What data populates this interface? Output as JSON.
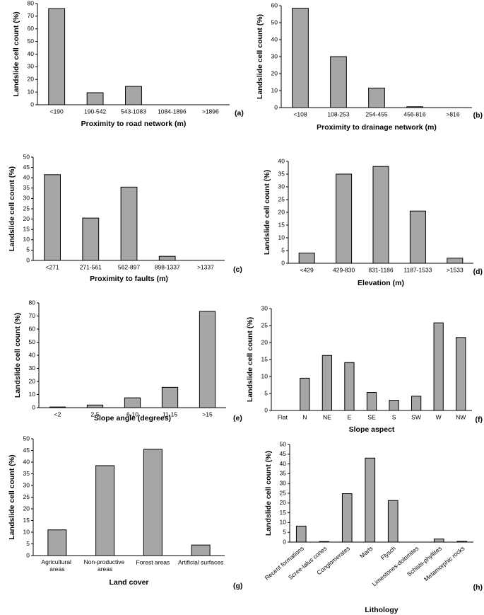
{
  "chart_data": [
    {
      "type": "bar",
      "ylabel": "Landslide cell count (%)",
      "xlabel": "Proximity to road network (m)",
      "panel": "(a)",
      "categories": [
        "<190",
        "190-542",
        "543-1083",
        "1084-1896",
        ">1896"
      ],
      "values": [
        76,
        9.5,
        14.5,
        0,
        0
      ],
      "color": "#a6a6a6",
      "ylim": [
        0,
        80
      ],
      "yticks": [
        0,
        10,
        20,
        30,
        40,
        50,
        60,
        70,
        80
      ]
    },
    {
      "type": "bar",
      "ylabel": "Landslide cell count (%)",
      "xlabel": "Proximity to drainage network (m)",
      "panel": "(b)",
      "categories": [
        "<108",
        "108-253",
        "254-455",
        "456-816",
        ">816"
      ],
      "values": [
        58.5,
        30,
        11.5,
        0.5,
        0
      ],
      "color": "#a6a6a6",
      "ylim": [
        0,
        60
      ],
      "yticks": [
        0,
        10,
        20,
        30,
        40,
        50,
        60
      ]
    },
    {
      "type": "bar",
      "ylabel": "Landslide cell count (%)",
      "xlabel": "Proximity to faults (m)",
      "panel": "(c)",
      "categories": [
        "<271",
        "271-561",
        "562-897",
        "898-1337",
        ">1337"
      ],
      "values": [
        41.5,
        20.5,
        35.5,
        2,
        0
      ],
      "color": "#a6a6a6",
      "ylim": [
        0,
        50
      ],
      "yticks": [
        0,
        5,
        10,
        15,
        20,
        25,
        30,
        35,
        40,
        45,
        50
      ]
    },
    {
      "type": "bar",
      "ylabel": "Landslide cell count (%)",
      "xlabel": "Elevation (m)",
      "panel": "(d)",
      "categories": [
        "<429",
        "429-830",
        "831-1186",
        "1187-1533",
        ">1533"
      ],
      "values": [
        4,
        35,
        38,
        20.5,
        2
      ],
      "color": "#a6a6a6",
      "ylim": [
        0,
        40
      ],
      "yticks": [
        0,
        5,
        10,
        15,
        20,
        25,
        30,
        35,
        40
      ]
    },
    {
      "type": "bar",
      "ylabel": "Landslide cell count (%)",
      "xlabel": "Slope angle (degrees)",
      "panel": "(e)",
      "categories": [
        "<2",
        "2-5",
        "6-10",
        "11-15",
        ">15"
      ],
      "values": [
        0.5,
        2,
        7.5,
        15.5,
        73.5
      ],
      "color": "#a6a6a6",
      "ylim": [
        0,
        80
      ],
      "yticks": [
        0,
        10,
        20,
        30,
        40,
        50,
        60,
        70,
        80
      ]
    },
    {
      "type": "bar",
      "ylabel": "Landslide cell count (%)",
      "xlabel": "Slope aspect",
      "panel": "(f)",
      "categories": [
        "Flat",
        "N",
        "NE",
        "E",
        "SE",
        "S",
        "SW",
        "W",
        "NW"
      ],
      "values": [
        0,
        9.5,
        16.2,
        14.1,
        5.3,
        3,
        4.2,
        25.8,
        21.5
      ],
      "color": "#a6a6a6",
      "ylim": [
        0,
        30
      ],
      "yticks": [
        0,
        5,
        10,
        15,
        20,
        25,
        30
      ]
    },
    {
      "type": "bar",
      "ylabel": "Landslide cell count (%)",
      "xlabel": "Land cover",
      "panel": "(g)",
      "categories": [
        "Agricultural areas",
        "Non-productive areas",
        "Forest areas",
        "Artificial surfaces"
      ],
      "values": [
        11,
        38.5,
        45.5,
        4.5
      ],
      "color": "#a6a6a6",
      "ylim": [
        0,
        50
      ],
      "yticks": [
        0,
        5,
        10,
        15,
        20,
        25,
        30,
        35,
        40,
        45,
        50
      ]
    },
    {
      "type": "bar",
      "ylabel": "Landslide cell count (%)",
      "xlabel": "Lithology",
      "panel": "(h)",
      "categories": [
        "Recent formations",
        "Scree-talus cones",
        "Conglomerates",
        "Marls",
        "Flysch",
        "Limestones-dolomites",
        "Schists-phyllites",
        "Metamorphic rocks"
      ],
      "values": [
        8.2,
        0.3,
        24.8,
        43,
        21.3,
        0,
        1.6,
        0.4
      ],
      "color": "#a6a6a6",
      "ylim": [
        0,
        50
      ],
      "yticks": [
        0,
        5,
        10,
        15,
        20,
        25,
        30,
        35,
        40,
        45,
        50
      ],
      "xtick_rotation": -40
    }
  ]
}
